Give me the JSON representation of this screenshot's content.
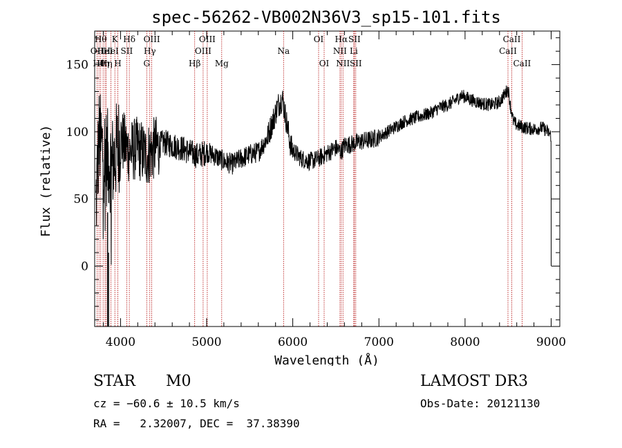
{
  "chart_data": {
    "type": "line",
    "title": "spec-56262-VB002N36V3_sp15-101.fits",
    "xlabel": "Wavelength (Å)",
    "ylabel": "Flux (relative)",
    "xlim": [
      3700,
      9100
    ],
    "ylim": [
      -45,
      175
    ],
    "xticks": [
      4000,
      5000,
      6000,
      7000,
      8000,
      9000
    ],
    "yticks": [
      0,
      50,
      100,
      150
    ],
    "xtick_labels": [
      "4000",
      "5000",
      "6000",
      "7000",
      "8000",
      "9000"
    ],
    "ytick_labels": [
      "0",
      "50",
      "100",
      "150"
    ],
    "spectrum_envelope": [
      [
        3710,
        40
      ],
      [
        3750,
        95
      ],
      [
        3800,
        85
      ],
      [
        3850,
        80
      ],
      [
        3900,
        75
      ],
      [
        3950,
        85
      ],
      [
        4000,
        95
      ],
      [
        4100,
        85
      ],
      [
        4200,
        88
      ],
      [
        4300,
        82
      ],
      [
        4400,
        88
      ],
      [
        4500,
        92
      ],
      [
        4600,
        90
      ],
      [
        4700,
        88
      ],
      [
        4800,
        85
      ],
      [
        4900,
        82
      ],
      [
        5000,
        85
      ],
      [
        5100,
        82
      ],
      [
        5200,
        78
      ],
      [
        5300,
        76
      ],
      [
        5400,
        80
      ],
      [
        5500,
        83
      ],
      [
        5600,
        85
      ],
      [
        5700,
        95
      ],
      [
        5780,
        110
      ],
      [
        5830,
        120
      ],
      [
        5880,
        125
      ],
      [
        5920,
        110
      ],
      [
        5980,
        88
      ],
      [
        6050,
        83
      ],
      [
        6100,
        80
      ],
      [
        6200,
        78
      ],
      [
        6300,
        80
      ],
      [
        6400,
        84
      ],
      [
        6500,
        88
      ],
      [
        6560,
        85
      ],
      [
        6600,
        90
      ],
      [
        6700,
        91
      ],
      [
        6800,
        93
      ],
      [
        6900,
        94
      ],
      [
        7000,
        96
      ],
      [
        7100,
        100
      ],
      [
        7200,
        104
      ],
      [
        7300,
        108
      ],
      [
        7400,
        110
      ],
      [
        7500,
        112
      ],
      [
        7600,
        114
      ],
      [
        7700,
        118
      ],
      [
        7800,
        120
      ],
      [
        7900,
        124
      ],
      [
        7950,
        127
      ],
      [
        8000,
        126
      ],
      [
        8100,
        123
      ],
      [
        8200,
        121
      ],
      [
        8300,
        120
      ],
      [
        8400,
        122
      ],
      [
        8460,
        128
      ],
      [
        8500,
        132
      ],
      [
        8530,
        118
      ],
      [
        8560,
        108
      ],
      [
        8600,
        105
      ],
      [
        8700,
        103
      ],
      [
        8800,
        102
      ],
      [
        8900,
        103
      ],
      [
        8960,
        100
      ],
      [
        9000,
        97
      ]
    ],
    "annotations": [
      {
        "wl": 3727,
        "label": "OII",
        "row": 2
      },
      {
        "wl": 3750,
        "label": "Hθ",
        "row": 3
      },
      {
        "wl": 3770,
        "label": "Hθ",
        "row": 1
      },
      {
        "wl": 3798,
        "label": "Hη",
        "row": 3
      },
      {
        "wl": 3820,
        "label": "HeI",
        "row": 2
      },
      {
        "wl": 3835,
        "label": "Hη",
        "row": 3
      },
      {
        "wl": 3889,
        "label": "HeI",
        "row": 2
      },
      {
        "wl": 3934,
        "label": "K",
        "row": 1
      },
      {
        "wl": 3969,
        "label": "H",
        "row": 3
      },
      {
        "wl": 4072,
        "label": "SII",
        "row": 2
      },
      {
        "wl": 4102,
        "label": "Hδ",
        "row": 1
      },
      {
        "wl": 4304,
        "label": "G",
        "row": 3
      },
      {
        "wl": 4340,
        "label": "Hγ",
        "row": 2
      },
      {
        "wl": 4363,
        "label": "OIII",
        "row": 1
      },
      {
        "wl": 4861,
        "label": "Hβ",
        "row": 3
      },
      {
        "wl": 4959,
        "label": "OIII",
        "row": 2
      },
      {
        "wl": 5007,
        "label": "OIII",
        "row": 1
      },
      {
        "wl": 5175,
        "label": "Mg",
        "row": 3
      },
      {
        "wl": 5893,
        "label": "Na",
        "row": 2
      },
      {
        "wl": 6300,
        "label": "OI",
        "row": 1
      },
      {
        "wl": 6364,
        "label": "OI",
        "row": 3
      },
      {
        "wl": 6548,
        "label": "NII",
        "row": 2
      },
      {
        "wl": 6563,
        "label": "Hα",
        "row": 1
      },
      {
        "wl": 6583,
        "label": "NII",
        "row": 3
      },
      {
        "wl": 6708,
        "label": "Li",
        "row": 2
      },
      {
        "wl": 6716,
        "label": "SII",
        "row": 1
      },
      {
        "wl": 6731,
        "label": "SII",
        "row": 3
      },
      {
        "wl": 8498,
        "label": "CaII",
        "row": 2
      },
      {
        "wl": 8542,
        "label": "CaII",
        "row": 1
      },
      {
        "wl": 8662,
        "label": "CaII",
        "row": 3
      }
    ]
  },
  "info": {
    "object_class": "STAR",
    "subclass": "M0",
    "survey": "LAMOST DR3",
    "redshift": "cz = −60.6 ± 10.5 km/s",
    "obs_date": "Obs-Date: 20121130",
    "coords": "RA =   2.32007, DEC =  37.38390"
  },
  "colors": {
    "spectrum": "#000000",
    "line_marker": "#b00000",
    "axis": "#000000",
    "background": "#ffffff"
  }
}
